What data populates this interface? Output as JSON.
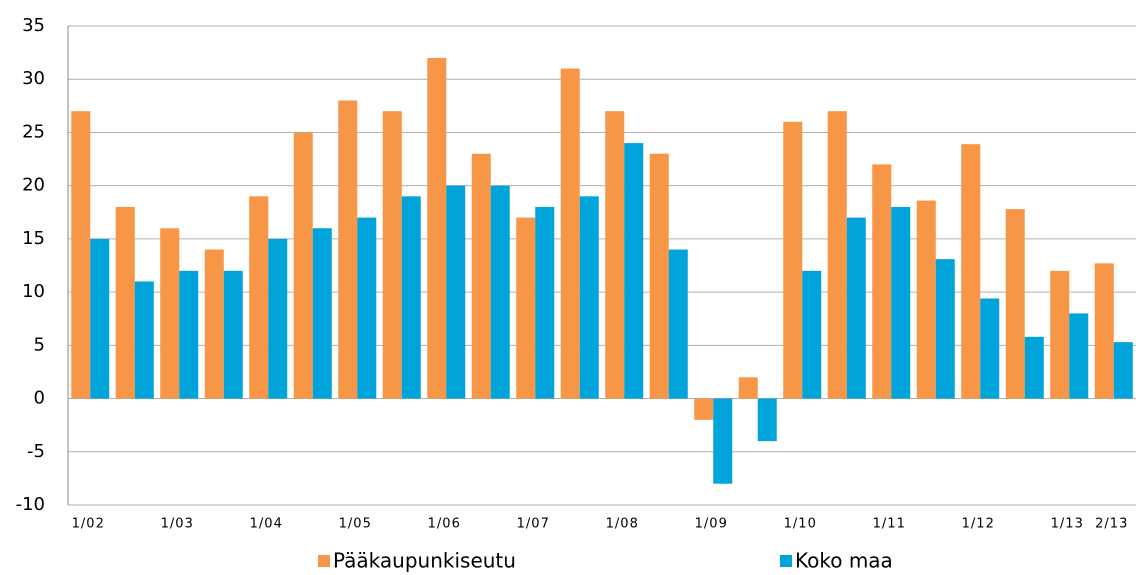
{
  "chart_data": {
    "type": "bar",
    "categories": [
      "1/02",
      null,
      "1/03",
      null,
      "1/04",
      null,
      "1/05",
      null,
      "1/06",
      null,
      "1/07",
      null,
      "1/08",
      null,
      "1/09",
      null,
      "1/10",
      null,
      "1/11",
      null,
      "1/12",
      null,
      "1/13",
      "2/13"
    ],
    "series": [
      {
        "name": "Pääkaupunkiseutu",
        "color": "#f79646",
        "values": [
          27,
          18,
          16,
          14,
          19,
          25,
          28,
          27,
          32,
          23,
          17,
          31,
          27,
          23,
          -2,
          2,
          26,
          27,
          22,
          18.6,
          23.9,
          17.8,
          12,
          12.7
        ]
      },
      {
        "name": "Koko maa",
        "color": "#00a3da",
        "values": [
          15,
          11,
          12,
          12,
          15,
          16,
          17,
          19,
          20,
          20,
          18,
          19,
          24,
          14,
          -8,
          -4,
          12,
          17,
          18,
          13.1,
          9.4,
          5.8,
          8,
          5.3
        ]
      }
    ],
    "ylim": [
      -10,
      35
    ],
    "yticks": [
      -10,
      -5,
      0,
      5,
      10,
      15,
      20,
      25,
      30,
      35
    ],
    "grid": true,
    "legend": "bottom"
  }
}
